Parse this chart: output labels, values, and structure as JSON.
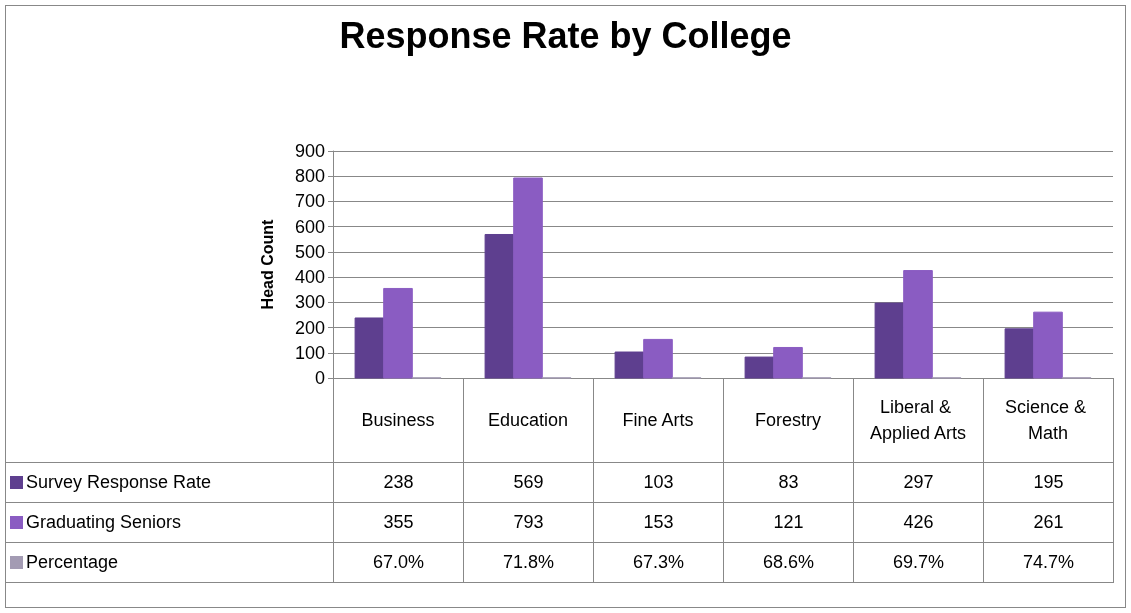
{
  "chart_data": {
    "type": "bar",
    "title": "Response Rate by College",
    "ylabel": "Head Count",
    "categories": [
      "Business",
      "Education",
      "Fine Arts",
      "Forestry",
      "Liberal & Applied Arts",
      "Science & Math"
    ],
    "series": [
      {
        "name": "Survey Response Rate",
        "color": "#5e3f8f",
        "values": [
          238,
          569,
          103,
          83,
          297,
          195
        ]
      },
      {
        "name": "Graduating Seniors",
        "color": "#8a5cc2",
        "values": [
          355,
          793,
          153,
          121,
          426,
          261
        ]
      },
      {
        "name": "Percentage",
        "color": "#a39bb3",
        "values": [
          0.67,
          0.718,
          0.673,
          0.686,
          0.697,
          0.747
        ],
        "value_labels": [
          "67.0%",
          "71.8%",
          "67.3%",
          "68.6%",
          "69.7%",
          "74.7%"
        ]
      }
    ],
    "ylim": [
      0,
      900
    ],
    "yticks": [
      0,
      100,
      200,
      300,
      400,
      500,
      600,
      700,
      800,
      900
    ],
    "grid": "y",
    "legend": "bottom",
    "data_labels": true
  }
}
